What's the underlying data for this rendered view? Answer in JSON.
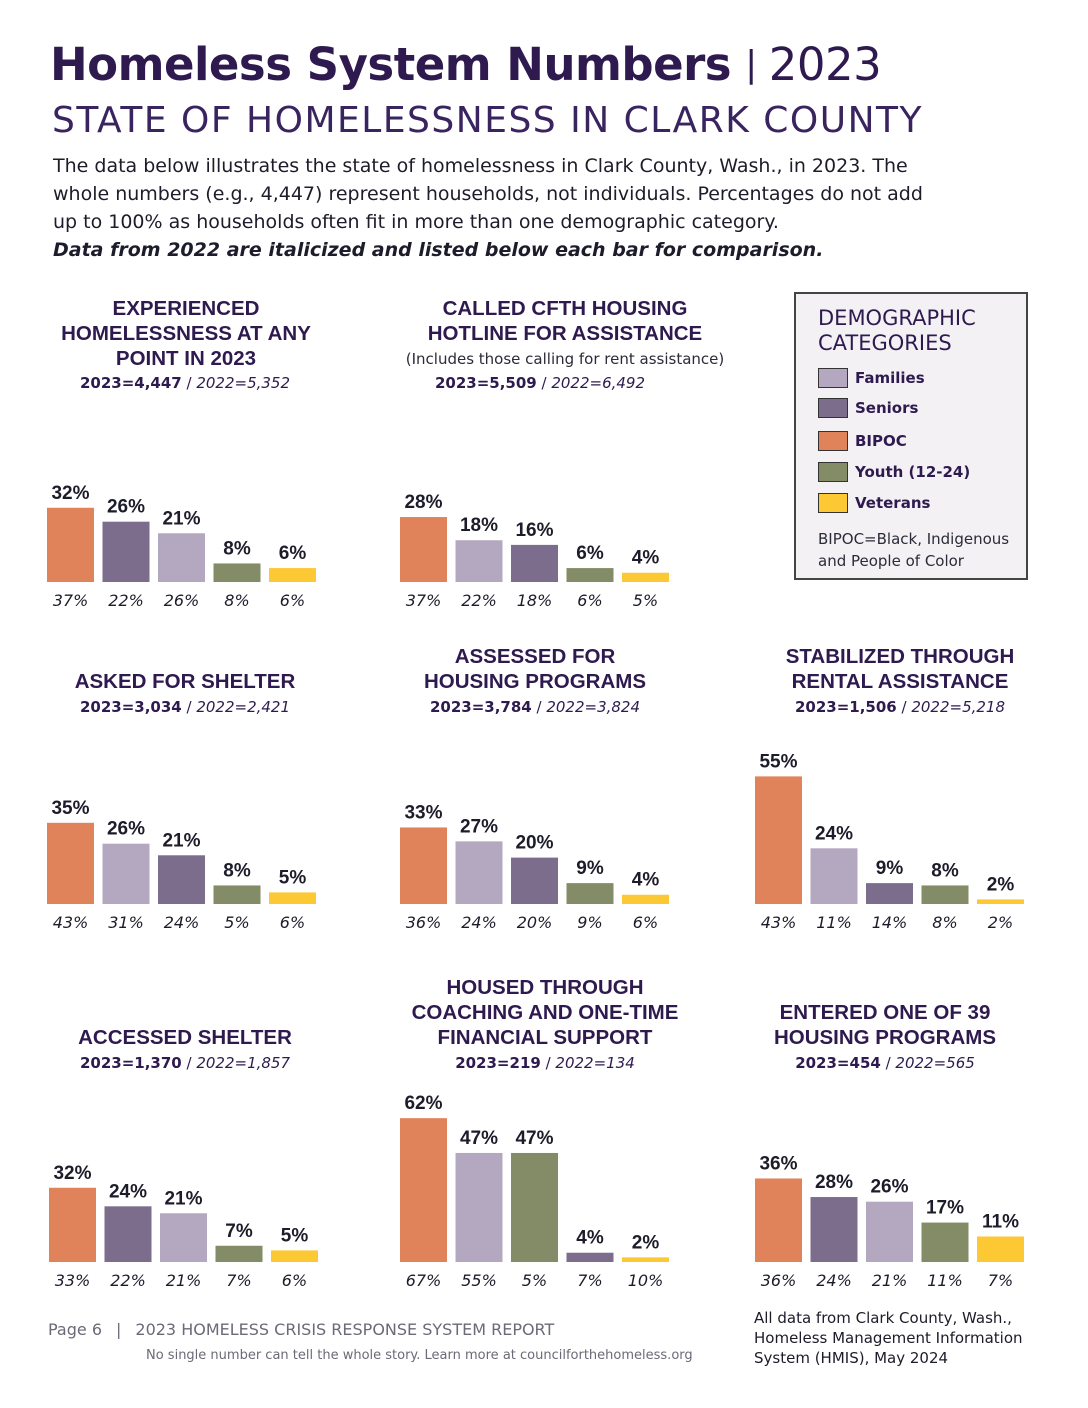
{
  "header": {
    "title": "Homeless System Numbers",
    "separator": "|",
    "year": "2023",
    "subtitle": "STATE OF HOMELESSNESS IN CLARK COUNTY",
    "intro": "The data below illustrates the state of homelessness in Clark County, Wash., in 2023. The whole numbers (e.g., 4,447) represent households, not individuals. Percentages do not add up to 100% as households often fit in more than one demographic category.",
    "intro_note": "Data from 2022 are italicized and listed below each bar for comparison."
  },
  "colors": {
    "Families": "#b3a8bf",
    "Seniors": "#7d6d8d",
    "BIPOC": "#e0835a",
    "Youth (12-24)": "#838c67",
    "Veterans": "#fcc934"
  },
  "legend": {
    "title": "DEMOGRAPHIC CATEGORIES",
    "items": [
      {
        "label": "Families",
        "color": "#b3a8bf"
      },
      {
        "label": "Seniors",
        "color": "#7d6d8d"
      },
      {
        "label": "BIPOC",
        "color": "#e0835a"
      },
      {
        "label": "Youth (12-24)",
        "color": "#838c67"
      },
      {
        "label": "Veterans",
        "color": "#fcc934"
      }
    ],
    "note": "BIPOC=Black, Indigenous and People of Color"
  },
  "chart_data": [
    {
      "type": "bar",
      "title": "EXPERIENCED HOMELESSNESS AT ANY POINT IN 2023",
      "total_2023": "2023=4,447",
      "total_2022": "2022=5,352",
      "categories": [
        "BIPOC",
        "Seniors",
        "Families",
        "Youth (12-24)",
        "Veterans"
      ],
      "values": [
        32,
        26,
        21,
        8,
        6
      ],
      "prior_values": [
        37,
        22,
        26,
        8,
        6
      ],
      "value_labels": [
        "32%",
        "26%",
        "21%",
        "8%",
        "6%"
      ],
      "prior_labels": [
        "37%",
        "22%",
        "26%",
        "8%",
        "6%"
      ]
    },
    {
      "type": "bar",
      "title": "CALLED CFTH HOUSING HOTLINE FOR ASSISTANCE",
      "subtitle": "(Includes those calling for rent assistance)",
      "total_2023": "2023=5,509",
      "total_2022": "2022=6,492",
      "categories": [
        "BIPOC",
        "Families",
        "Seniors",
        "Youth (12-24)",
        "Veterans"
      ],
      "values": [
        28,
        18,
        16,
        6,
        4
      ],
      "prior_values": [
        37,
        22,
        18,
        6,
        5
      ],
      "value_labels": [
        "28%",
        "18%",
        "16%",
        "6%",
        "4%"
      ],
      "prior_labels": [
        "37%",
        "22%",
        "18%",
        "6%",
        "5%"
      ]
    },
    {
      "type": "bar",
      "title": "ASKED FOR SHELTER",
      "total_2023": "2023=3,034",
      "total_2022": "2022=2,421",
      "categories": [
        "BIPOC",
        "Families",
        "Seniors",
        "Youth (12-24)",
        "Veterans"
      ],
      "values": [
        35,
        26,
        21,
        8,
        5
      ],
      "prior_values": [
        43,
        31,
        24,
        5,
        6
      ],
      "value_labels": [
        "35%",
        "26%",
        "21%",
        "8%",
        "5%"
      ],
      "prior_labels": [
        "43%",
        "31%",
        "24%",
        "5%",
        "6%"
      ]
    },
    {
      "type": "bar",
      "title": "ASSESSED FOR HOUSING PROGRAMS",
      "total_2023": "2023=3,784",
      "total_2022": "2022=3,824",
      "categories": [
        "BIPOC",
        "Families",
        "Seniors",
        "Youth (12-24)",
        "Veterans"
      ],
      "values": [
        33,
        27,
        20,
        9,
        4
      ],
      "prior_values": [
        36,
        24,
        20,
        9,
        6
      ],
      "value_labels": [
        "33%",
        "27%",
        "20%",
        "9%",
        "4%"
      ],
      "prior_labels": [
        "36%",
        "24%",
        "20%",
        "9%",
        "6%"
      ]
    },
    {
      "type": "bar",
      "title": "STABILIZED THROUGH RENTAL ASSISTANCE",
      "total_2023": "2023=1,506",
      "total_2022": "2022=5,218",
      "categories": [
        "BIPOC",
        "Families",
        "Seniors",
        "Youth (12-24)",
        "Veterans"
      ],
      "values": [
        55,
        24,
        9,
        8,
        2
      ],
      "prior_values": [
        43,
        11,
        14,
        8,
        2
      ],
      "value_labels": [
        "55%",
        "24%",
        "9%",
        "8%",
        "2%"
      ],
      "prior_labels": [
        "43%",
        "11%",
        "14%",
        "8%",
        "2%"
      ]
    },
    {
      "type": "bar",
      "title": "ACCESSED SHELTER",
      "total_2023": "2023=1,370",
      "total_2022": "2022=1,857",
      "categories": [
        "BIPOC",
        "Seniors",
        "Families",
        "Youth (12-24)",
        "Veterans"
      ],
      "values": [
        32,
        24,
        21,
        7,
        5
      ],
      "prior_values": [
        33,
        22,
        21,
        7,
        6
      ],
      "value_labels": [
        "32%",
        "24%",
        "21%",
        "7%",
        "5%"
      ],
      "prior_labels": [
        "33%",
        "22%",
        "21%",
        "7%",
        "6%"
      ]
    },
    {
      "type": "bar",
      "title": "HOUSED THROUGH COACHING AND ONE-TIME FINANCIAL SUPPORT",
      "total_2023": "2023=219",
      "total_2022": "2022=134",
      "categories": [
        "BIPOC",
        "Families",
        "Youth (12-24)",
        "Seniors",
        "Veterans"
      ],
      "values": [
        62,
        47,
        47,
        4,
        2
      ],
      "prior_values": [
        67,
        55,
        5,
        7,
        10
      ],
      "value_labels": [
        "62%",
        "47%",
        "47%",
        "4%",
        "2%"
      ],
      "prior_labels": [
        "67%",
        "55%",
        "5%",
        "7%",
        "10%"
      ]
    },
    {
      "type": "bar",
      "title": "ENTERED ONE OF 39 HOUSING PROGRAMS",
      "total_2023": "2023=454",
      "total_2022": "2022=565",
      "categories": [
        "BIPOC",
        "Seniors",
        "Families",
        "Youth (12-24)",
        "Veterans"
      ],
      "values": [
        36,
        28,
        26,
        17,
        11
      ],
      "prior_values": [
        36,
        24,
        21,
        11,
        7
      ],
      "value_labels": [
        "36%",
        "28%",
        "26%",
        "17%",
        "11%"
      ],
      "prior_labels": [
        "36%",
        "24%",
        "21%",
        "11%",
        "7%"
      ]
    }
  ],
  "footer": {
    "page": "Page 6",
    "separator": "|",
    "report": "2023 HOMELESS CRISIS RESPONSE SYSTEM REPORT",
    "tagline": "No single number can tell the whole story. Learn more at councilforthehomeless.org",
    "source": "All data from Clark County, Wash., Homeless Management Information System (HMIS), May 2024"
  }
}
